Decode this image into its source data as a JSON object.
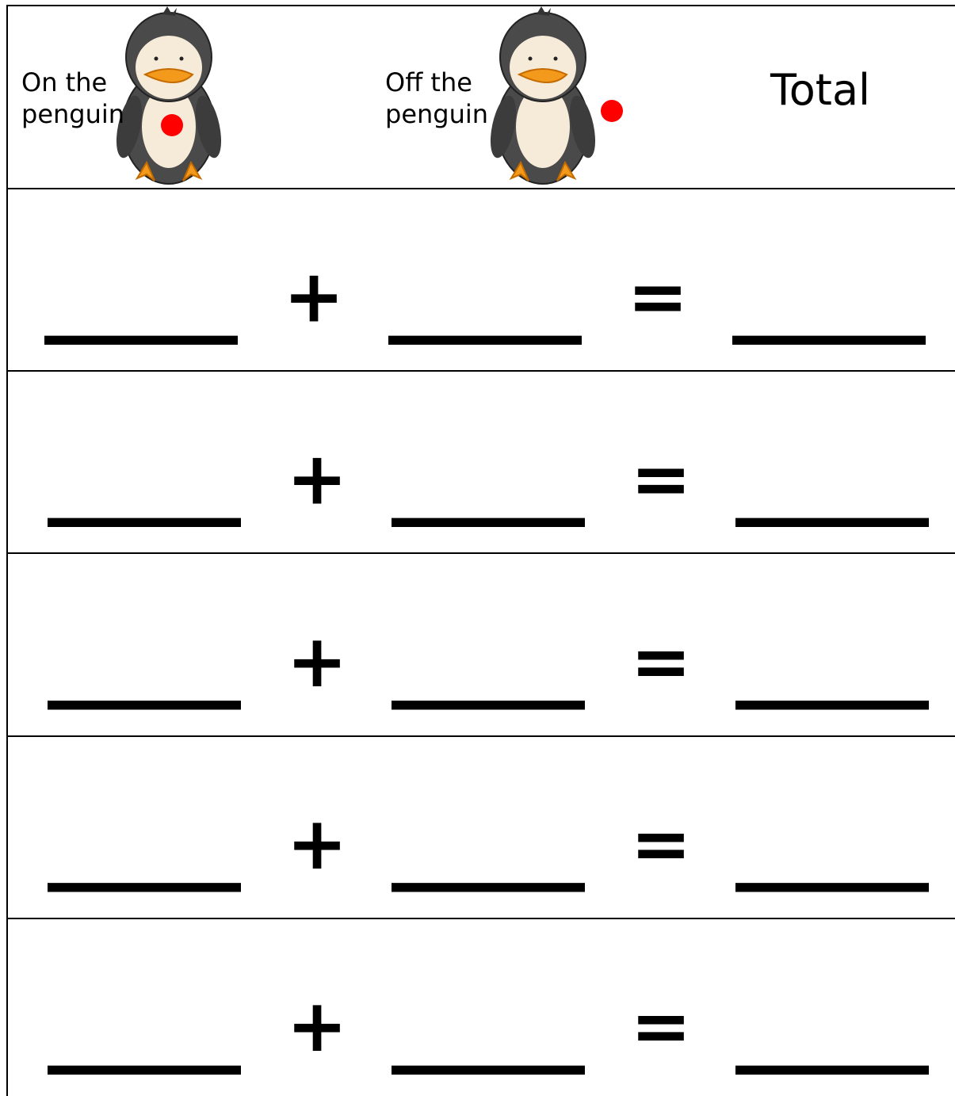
{
  "header": {
    "on": [
      "On the",
      "penguin"
    ],
    "off": [
      "Off the",
      "penguin"
    ],
    "total": "Total"
  },
  "rows": [
    [
      "____",
      "+",
      "____",
      "=",
      "____"
    ],
    [
      "____",
      "+",
      "____",
      "=",
      "____"
    ],
    [
      "____",
      "+",
      "____",
      "=",
      "____"
    ],
    [
      "____",
      "+",
      "____",
      "=",
      "____"
    ],
    [
      "____",
      "+",
      "____",
      "=",
      "____"
    ]
  ]
}
